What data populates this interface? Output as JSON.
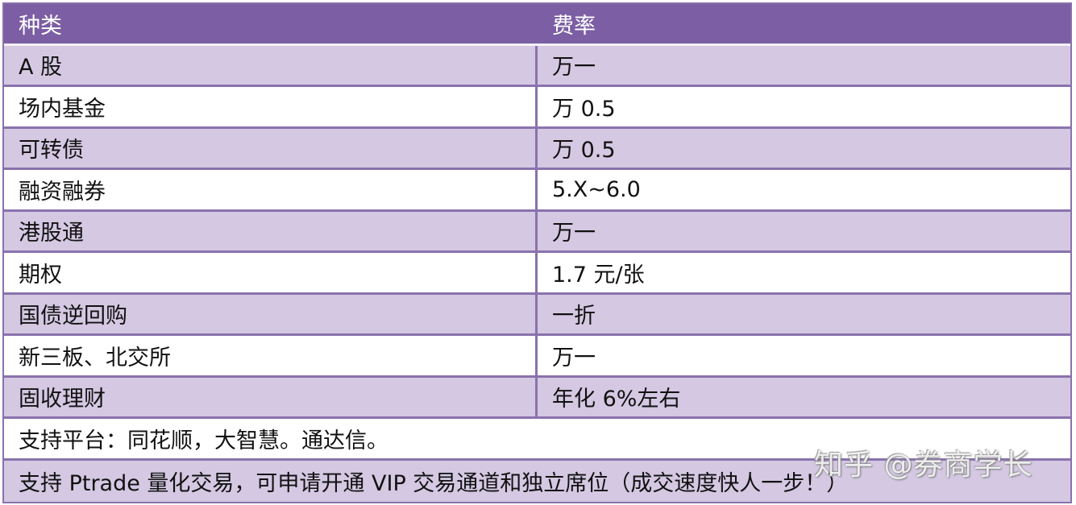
{
  "table": {
    "headers": [
      "种类",
      "费率"
    ],
    "rows": [
      {
        "type": "A 股",
        "rate": "万一"
      },
      {
        "type": "场内基金",
        "rate": "万 0.5"
      },
      {
        "type": "可转债",
        "rate": "万 0.5"
      },
      {
        "type": "融资融券",
        "rate": "5.X~6.0"
      },
      {
        "type": "港股通",
        "rate": "万一"
      },
      {
        "type": "期权",
        "rate": "1.7 元/张"
      },
      {
        "type": "国债逆回购",
        "rate": "一折"
      },
      {
        "type": "新三板、北交所",
        "rate": "万一"
      },
      {
        "type": "固收理财",
        "rate": "年化 6%左右"
      }
    ],
    "notes": [
      "支持平台：同花顺，大智慧。通达信。",
      "支持 Ptrade 量化交易，可申请开通 VIP 交易通道和独立席位（成交速度快人一步！）"
    ]
  },
  "watermark": "知乎 @券商学长",
  "colors": {
    "header_bg": "#7b5ea3",
    "odd_row_bg": "#d4c8e2",
    "even_row_bg": "#ffffff",
    "border": "#8a72ad"
  }
}
